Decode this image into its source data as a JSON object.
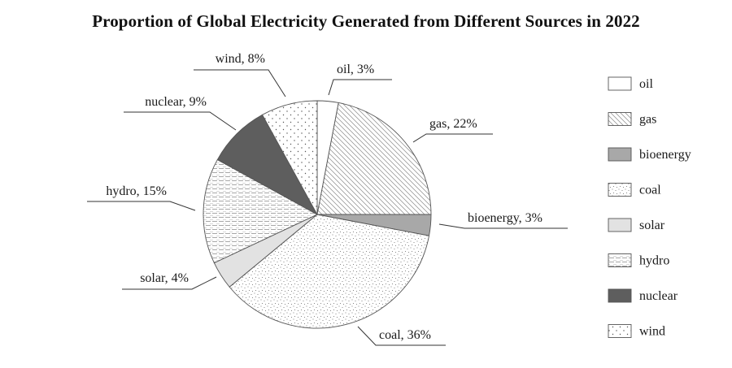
{
  "chart_data": {
    "type": "pie",
    "title": "Proportion of Global Electricity Generated from Different Sources in 2022",
    "slices": [
      {
        "name": "oil",
        "value": 3,
        "label": "oil, 3%",
        "pattern": "oil"
      },
      {
        "name": "gas",
        "value": 22,
        "label": "gas, 22%",
        "pattern": "gas"
      },
      {
        "name": "bioenergy",
        "value": 3,
        "label": "bioenergy, 3%",
        "pattern": "bioenergy"
      },
      {
        "name": "coal",
        "value": 36,
        "label": "coal, 36%",
        "pattern": "coal"
      },
      {
        "name": "solar",
        "value": 4,
        "label": "solar, 4%",
        "pattern": "solar"
      },
      {
        "name": "hydro",
        "value": 15,
        "label": "hydro, 15%",
        "pattern": "hydro"
      },
      {
        "name": "nuclear",
        "value": 9,
        "label": "nuclear, 9%",
        "pattern": "nuclear"
      },
      {
        "name": "wind",
        "value": 8,
        "label": "wind, 8%",
        "pattern": "wind"
      }
    ],
    "legend": {
      "position": "right",
      "entries": [
        "oil",
        "gas",
        "bioenergy",
        "coal",
        "solar",
        "hydro",
        "nuclear",
        "wind"
      ]
    }
  }
}
